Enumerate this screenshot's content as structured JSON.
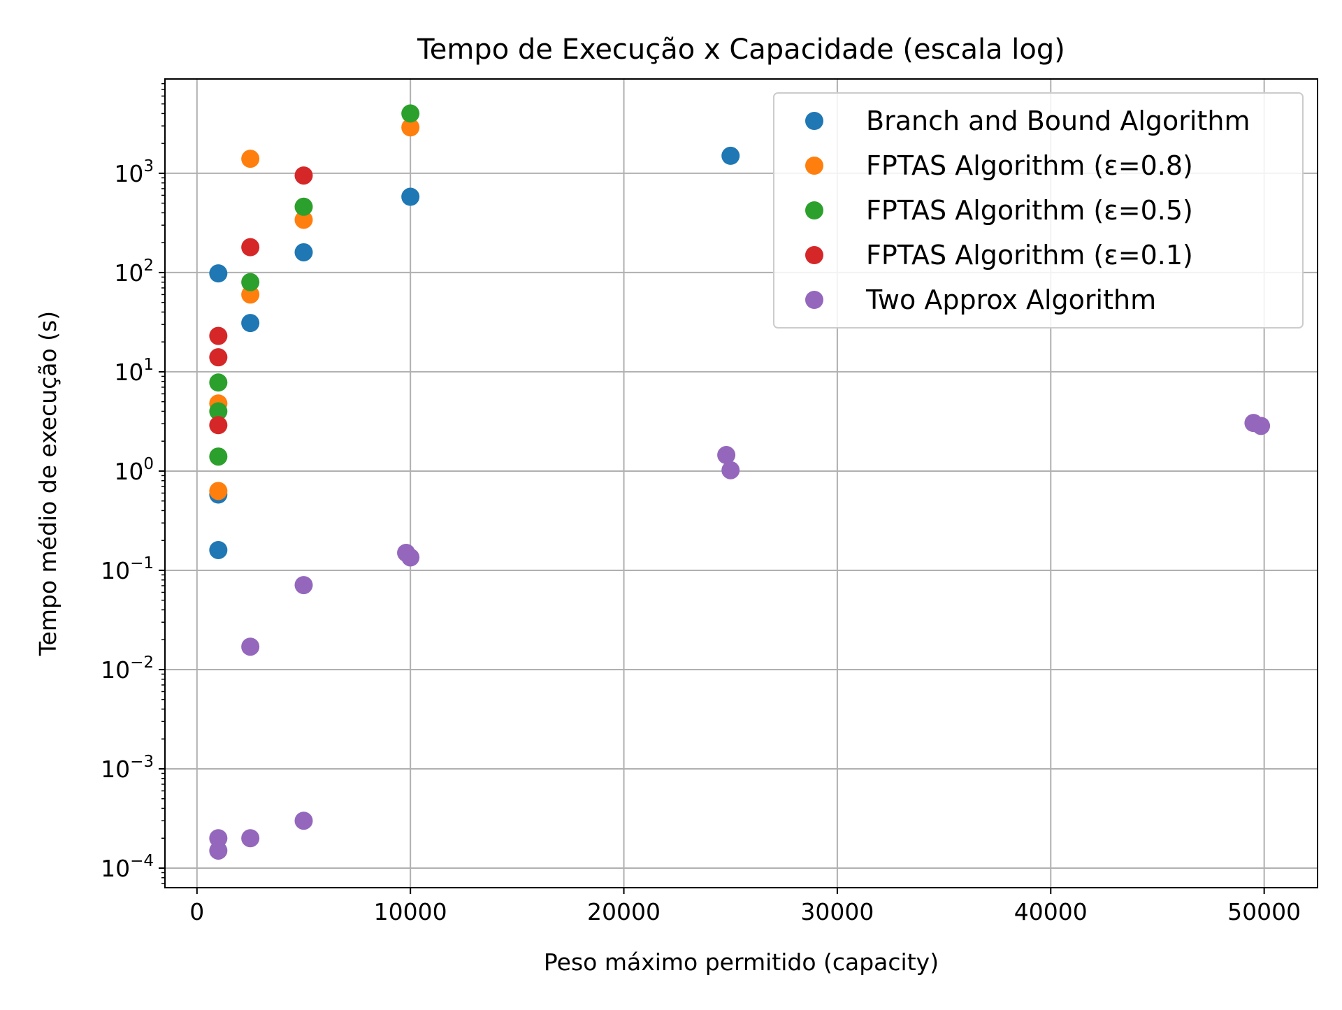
{
  "chart_data": {
    "type": "scatter",
    "title": "Tempo de Execução x Capacidade (escala log)",
    "xlabel": "Peso máximo permitido (capacity)",
    "ylabel": "Tempo médio de execução (s)",
    "xlim": [
      -1500,
      52500
    ],
    "ylim": [
      6.35e-05,
      8913
    ],
    "yscale": "log",
    "grid": true,
    "legend_position": "top-right",
    "x_ticks": [
      {
        "value": 0,
        "label": "0"
      },
      {
        "value": 10000,
        "label": "10000"
      },
      {
        "value": 20000,
        "label": "20000"
      },
      {
        "value": 30000,
        "label": "30000"
      },
      {
        "value": 40000,
        "label": "40000"
      },
      {
        "value": 50000,
        "label": "50000"
      }
    ],
    "y_ticks": [
      {
        "value": 0.0001,
        "base": "10",
        "exp": "−4"
      },
      {
        "value": 0.001,
        "base": "10",
        "exp": "−3"
      },
      {
        "value": 0.01,
        "base": "10",
        "exp": "−2"
      },
      {
        "value": 0.1,
        "base": "10",
        "exp": "−1"
      },
      {
        "value": 1,
        "base": "10",
        "exp": "0"
      },
      {
        "value": 10,
        "base": "10",
        "exp": "1"
      },
      {
        "value": 100,
        "base": "10",
        "exp": "2"
      },
      {
        "value": 1000,
        "base": "10",
        "exp": "3"
      }
    ],
    "series": [
      {
        "name": "Branch and Bound Algorithm",
        "color": "#1f77b4",
        "points": [
          [
            1000,
            0.16
          ],
          [
            1000,
            0.58
          ],
          [
            1000,
            98
          ],
          [
            2500,
            31
          ],
          [
            5000,
            160
          ],
          [
            10000,
            580
          ],
          [
            25000,
            1500
          ]
        ]
      },
      {
        "name": "FPTAS Algorithm (ε=0.8)",
        "color": "#ff7f0e",
        "points": [
          [
            1000,
            0.63
          ],
          [
            1000,
            4.8
          ],
          [
            2500,
            60
          ],
          [
            2500,
            1400
          ],
          [
            5000,
            340
          ],
          [
            10000,
            2900
          ]
        ]
      },
      {
        "name": "FPTAS Algorithm (ε=0.5)",
        "color": "#2ca02c",
        "points": [
          [
            1000,
            1.4
          ],
          [
            1000,
            4.0
          ],
          [
            1000,
            7.8
          ],
          [
            2500,
            80
          ],
          [
            5000,
            460
          ],
          [
            10000,
            4000
          ]
        ]
      },
      {
        "name": "FPTAS Algorithm (ε=0.1)",
        "color": "#d62728",
        "points": [
          [
            1000,
            2.9
          ],
          [
            1000,
            14
          ],
          [
            1000,
            23
          ],
          [
            2500,
            180
          ],
          [
            5000,
            950
          ]
        ]
      },
      {
        "name": "Two Approx Algorithm",
        "color": "#9467bd",
        "points": [
          [
            1000,
            0.00015
          ],
          [
            1000,
            0.0002
          ],
          [
            2500,
            0.0002
          ],
          [
            5000,
            0.0003
          ],
          [
            2500,
            0.017
          ],
          [
            5000,
            0.071
          ],
          [
            9800,
            0.15
          ],
          [
            10000,
            0.135
          ],
          [
            24800,
            1.45
          ],
          [
            25000,
            1.02
          ],
          [
            49500,
            3.05
          ],
          [
            49850,
            2.85
          ]
        ]
      }
    ]
  }
}
